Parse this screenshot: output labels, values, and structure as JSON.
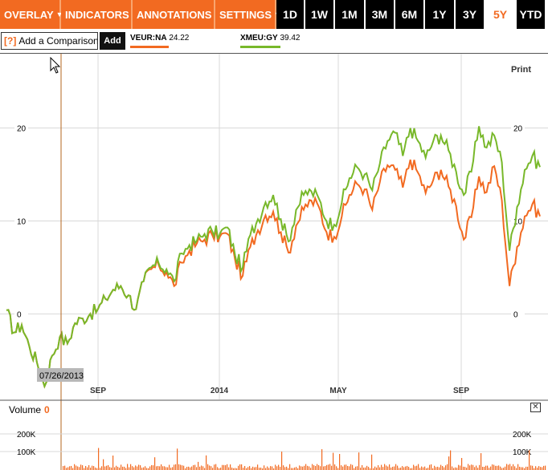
{
  "toolbar": {
    "menus": [
      {
        "label": "OVERLAY",
        "name": "overlay-menu",
        "width": 76
      },
      {
        "label": "INDICATORS",
        "name": "indicators-menu",
        "width": 89
      },
      {
        "label": "ANNOTATIONS",
        "name": "annotations-menu",
        "width": 103
      },
      {
        "label": "SETTINGS",
        "name": "settings-menu",
        "width": 76
      }
    ],
    "ranges": [
      {
        "label": "1D",
        "width": 36
      },
      {
        "label": "1W",
        "width": 37
      },
      {
        "label": "1M",
        "width": 38
      },
      {
        "label": "3M",
        "width": 37
      },
      {
        "label": "6M",
        "width": 37
      },
      {
        "label": "1Y",
        "width": 38
      },
      {
        "label": "3Y",
        "width": 37
      },
      {
        "label": "5Y",
        "width": 39
      },
      {
        "label": "YTD",
        "width": 37
      }
    ],
    "active_range": "5Y",
    "caret": "▼"
  },
  "comparison": {
    "help": "[?]",
    "placeholder": "Add a Comparison",
    "add_label": "Add"
  },
  "legend": [
    {
      "symbol": "VEUR:NA",
      "value": "24.22",
      "color": "#f26a21"
    },
    {
      "symbol": "XMEU:GY",
      "value": "39.42",
      "color": "#78b82a"
    }
  ],
  "print_label": "Print",
  "crosshair_date": "07/26/2013",
  "volume": {
    "label": "Volume",
    "value": "0",
    "close": "✕"
  },
  "colors": {
    "accent": "#f26a21",
    "green": "#78b82a",
    "grid": "#d8d8d8"
  },
  "chart_data": {
    "type": "line",
    "x_ticks": [
      "SEP",
      "2014",
      "MAY",
      "SEP"
    ],
    "y_ticks_left": [
      "20",
      "10",
      "0"
    ],
    "y_ticks_right": [
      "20",
      "10",
      "0"
    ],
    "ylim": [
      -8,
      28
    ],
    "volume_ticks": [
      "200K",
      "100K"
    ],
    "series": [
      {
        "name": "VEUR:NA",
        "color": "#f26a21",
        "values": [
          0.0,
          0.5,
          1.6,
          2.6,
          3.0,
          2.0,
          0.5,
          3.5,
          4.8,
          5.2,
          4.5,
          3.0,
          5.5,
          6.8,
          7.6,
          8.0,
          8.5,
          8.3,
          8.6,
          5.8,
          4.1,
          7.2,
          9.0,
          10.6,
          11.0,
          8.8,
          6.6,
          9.5,
          11.2,
          12.2,
          11.5,
          8.8,
          8.3,
          10.5,
          12.8,
          14.0,
          13.4,
          11.2,
          14.2,
          16.0,
          15.5,
          13.6,
          16.6,
          15.2,
          13.0,
          14.4,
          15.5,
          13.7,
          11.6,
          8.0,
          10.4,
          14.8,
          13.1,
          15.9,
          12.2,
          3.0,
          7.2,
          10.5,
          11.8,
          10.5
        ]
      },
      {
        "name": "XMEU:GY",
        "color": "#78b82a",
        "values": [
          0.0,
          0.5,
          1.6,
          2.6,
          3.0,
          2.0,
          0.5,
          3.5,
          5.0,
          5.4,
          4.8,
          3.5,
          6.5,
          7.4,
          7.9,
          8.6,
          8.9,
          8.6,
          9.3,
          6.3,
          5.0,
          8.5,
          10.2,
          12.0,
          12.8,
          10.2,
          7.8,
          11.2,
          12.8,
          13.2,
          12.4,
          10.0,
          9.6,
          12.0,
          14.6,
          15.8,
          15.0,
          13.3,
          16.2,
          18.6,
          19.5,
          17.0,
          20.0,
          18.6,
          16.8,
          18.6,
          19.2,
          17.6,
          15.3,
          12.8,
          15.3,
          20.2,
          17.9,
          19.2,
          16.3,
          6.8,
          11.5,
          15.5,
          17.0,
          15.8
        ]
      }
    ]
  }
}
